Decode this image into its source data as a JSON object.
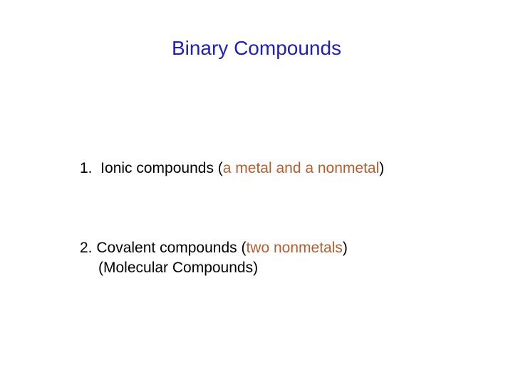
{
  "title": {
    "text": "Binary Compounds",
    "color": "#1f1fbf",
    "fontsize": 28
  },
  "items": [
    {
      "number": "1.",
      "number_color": "#000000",
      "label_prefix": "  Ionic compounds (",
      "label_prefix_color": "#000000",
      "highlight": "a metal and a nonmetal",
      "highlight_color": "#b85c2e",
      "label_suffix": ")",
      "label_suffix_color": "#000000"
    },
    {
      "number": "2.",
      "number_color": "#000000",
      "label_prefix": " Covalent compounds (",
      "label_prefix_color": "#000000",
      "highlight": "two nonmetals",
      "highlight_color": "#b85c2e",
      "label_suffix": ")",
      "label_suffix_color": "#000000",
      "subline": "(Molecular Compounds)",
      "subline_color": "#000000"
    }
  ],
  "body_fontsize": 21,
  "background_color": "#ffffff"
}
